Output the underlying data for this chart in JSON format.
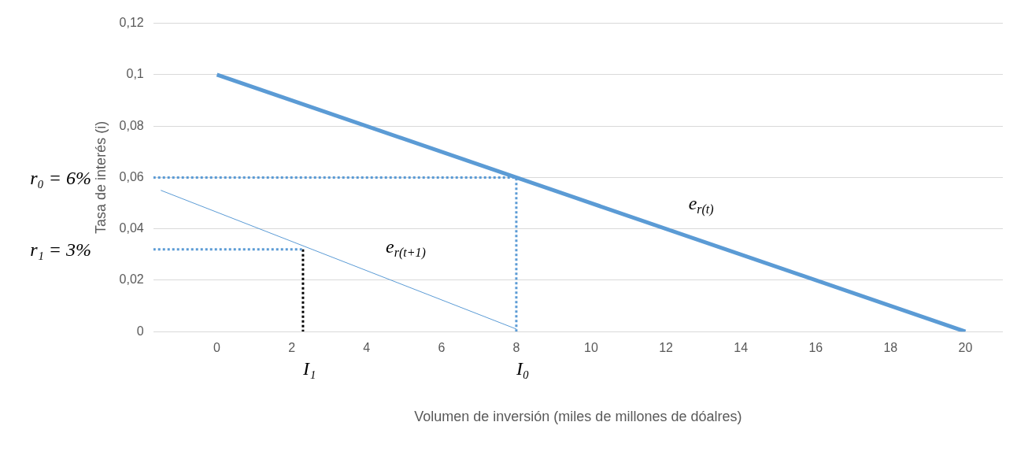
{
  "chart_data": {
    "type": "line",
    "xlabel": "Volumen de inversión (miles de millones de dóalres)",
    "ylabel": "Tasa de interés (i)",
    "xlim": [
      -1.7,
      21
    ],
    "xticks": [
      0,
      2,
      4,
      6,
      8,
      10,
      12,
      14,
      16,
      18,
      20
    ],
    "ylim": [
      0,
      0.12
    ],
    "yticks": [
      {
        "value": 0,
        "label": "0"
      },
      {
        "value": 0.02,
        "label": "0,02"
      },
      {
        "value": 0.04,
        "label": "0,04"
      },
      {
        "value": 0.06,
        "label": "0,06"
      },
      {
        "value": 0.08,
        "label": "0,08"
      },
      {
        "value": 0.1,
        "label": "0,1"
      },
      {
        "value": 0.12,
        "label": "0,12"
      }
    ],
    "grid": "y",
    "marker": "none",
    "legend": false,
    "series": [
      {
        "color": "#5b9bd5",
        "x": [
          0,
          20
        ],
        "values": [
          0.1,
          0
        ],
        "line_style": "solid"
      },
      {
        "color": "#5b9bd5",
        "x": [
          -1.5,
          8
        ],
        "values": [
          0.055,
          0.001
        ],
        "line_style": "solid"
      },
      {
        "color": "#5b9bd5",
        "x": [
          -1.7,
          8,
          8
        ],
        "values": [
          0.06,
          0.06,
          0
        ],
        "line_style": "dotted"
      },
      {
        "color": "#5b9bd5",
        "x": [
          -1.7,
          2.3
        ],
        "values": [
          0.032,
          0.032
        ],
        "line_style": "dotted"
      },
      {
        "color": "#000000",
        "x": [
          2.3,
          2.3
        ],
        "values": [
          0.032,
          0
        ],
        "line_style": "dotted"
      }
    ],
    "annotations": [
      "r₀ = 6%",
      "r₁ = 3%",
      "I₁",
      "I₀",
      "e$_{r(t)}$",
      "e$_{r(t+1)}$"
    ]
  }
}
